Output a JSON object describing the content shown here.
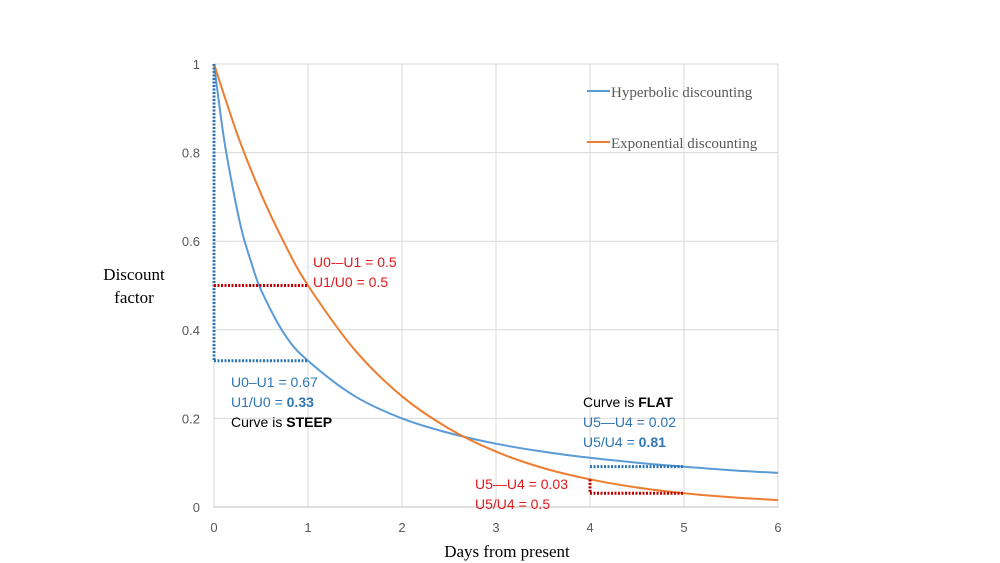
{
  "chart_data": {
    "type": "line",
    "xlabel": "Days from present",
    "ylabel_lines": [
      "Discount",
      "factor"
    ],
    "xlim": [
      0,
      6
    ],
    "ylim": [
      0,
      1
    ],
    "x_ticks": [
      "0",
      "1",
      "2",
      "3",
      "4",
      "5",
      "6"
    ],
    "y_ticks": [
      "0",
      "0.2",
      "0.4",
      "0.6",
      "0.8",
      "1"
    ],
    "grid": true,
    "legend_position": "top-right",
    "series": [
      {
        "name": "Hyperbolic discounting",
        "color": "#5b9bd5",
        "x": [
          0,
          0.1,
          0.2,
          0.3,
          0.4,
          0.5,
          0.75,
          1,
          1.5,
          2,
          2.5,
          3,
          3.5,
          4,
          4.5,
          5,
          5.5,
          6
        ],
        "y": [
          1,
          0.84,
          0.72,
          0.62,
          0.55,
          0.49,
          0.39,
          0.33,
          0.25,
          0.2,
          0.167,
          0.143,
          0.125,
          0.111,
          0.1,
          0.091,
          0.083,
          0.077
        ]
      },
      {
        "name": "Exponential discounting",
        "color": "#ed7d31",
        "x": [
          0,
          0.25,
          0.5,
          0.75,
          1,
          1.5,
          2,
          2.5,
          3,
          3.5,
          4,
          4.5,
          5,
          5.5,
          6
        ],
        "y": [
          1,
          0.84,
          0.707,
          0.595,
          0.5,
          0.354,
          0.25,
          0.177,
          0.125,
          0.088,
          0.0625,
          0.044,
          0.031,
          0.022,
          0.0156
        ]
      }
    ],
    "markers": [
      {
        "color": "#2e75b6",
        "x1": 0,
        "x2": 1,
        "y": 0.33,
        "vertical_from": 1
      },
      {
        "color": "#c00000",
        "x1": 0,
        "x2": 1,
        "y": 0.5
      },
      {
        "color": "#2e75b6",
        "x1": 4,
        "x2": 5,
        "y": 0.091
      },
      {
        "color": "#c00000",
        "x1": 4,
        "x2": 5,
        "y": 0.031,
        "vertical_from": 0.0625
      }
    ],
    "annotations": {
      "hyp_near_1": "U0–U1 = 0.67",
      "hyp_near_2_prefix": "U1/U0 = ",
      "hyp_near_2_bold": "0.33",
      "hyp_near_3_prefix": "Curve is ",
      "hyp_near_3_bold": "STEEP",
      "exp_near_1": "U0-–U1 = 0.5",
      "exp_near_2": "U1/U0 = 0.5",
      "hyp_far_0_prefix": "Curve is ",
      "hyp_far_0_bold": "FLAT",
      "hyp_far_1": "U5—U4 = 0.02",
      "hyp_far_2_prefix": "U5/U4 = ",
      "hyp_far_2_bold": "0.81",
      "exp_far_1": "U5—U4 = 0.03",
      "exp_far_2": "U5/U4 = 0.5"
    }
  }
}
